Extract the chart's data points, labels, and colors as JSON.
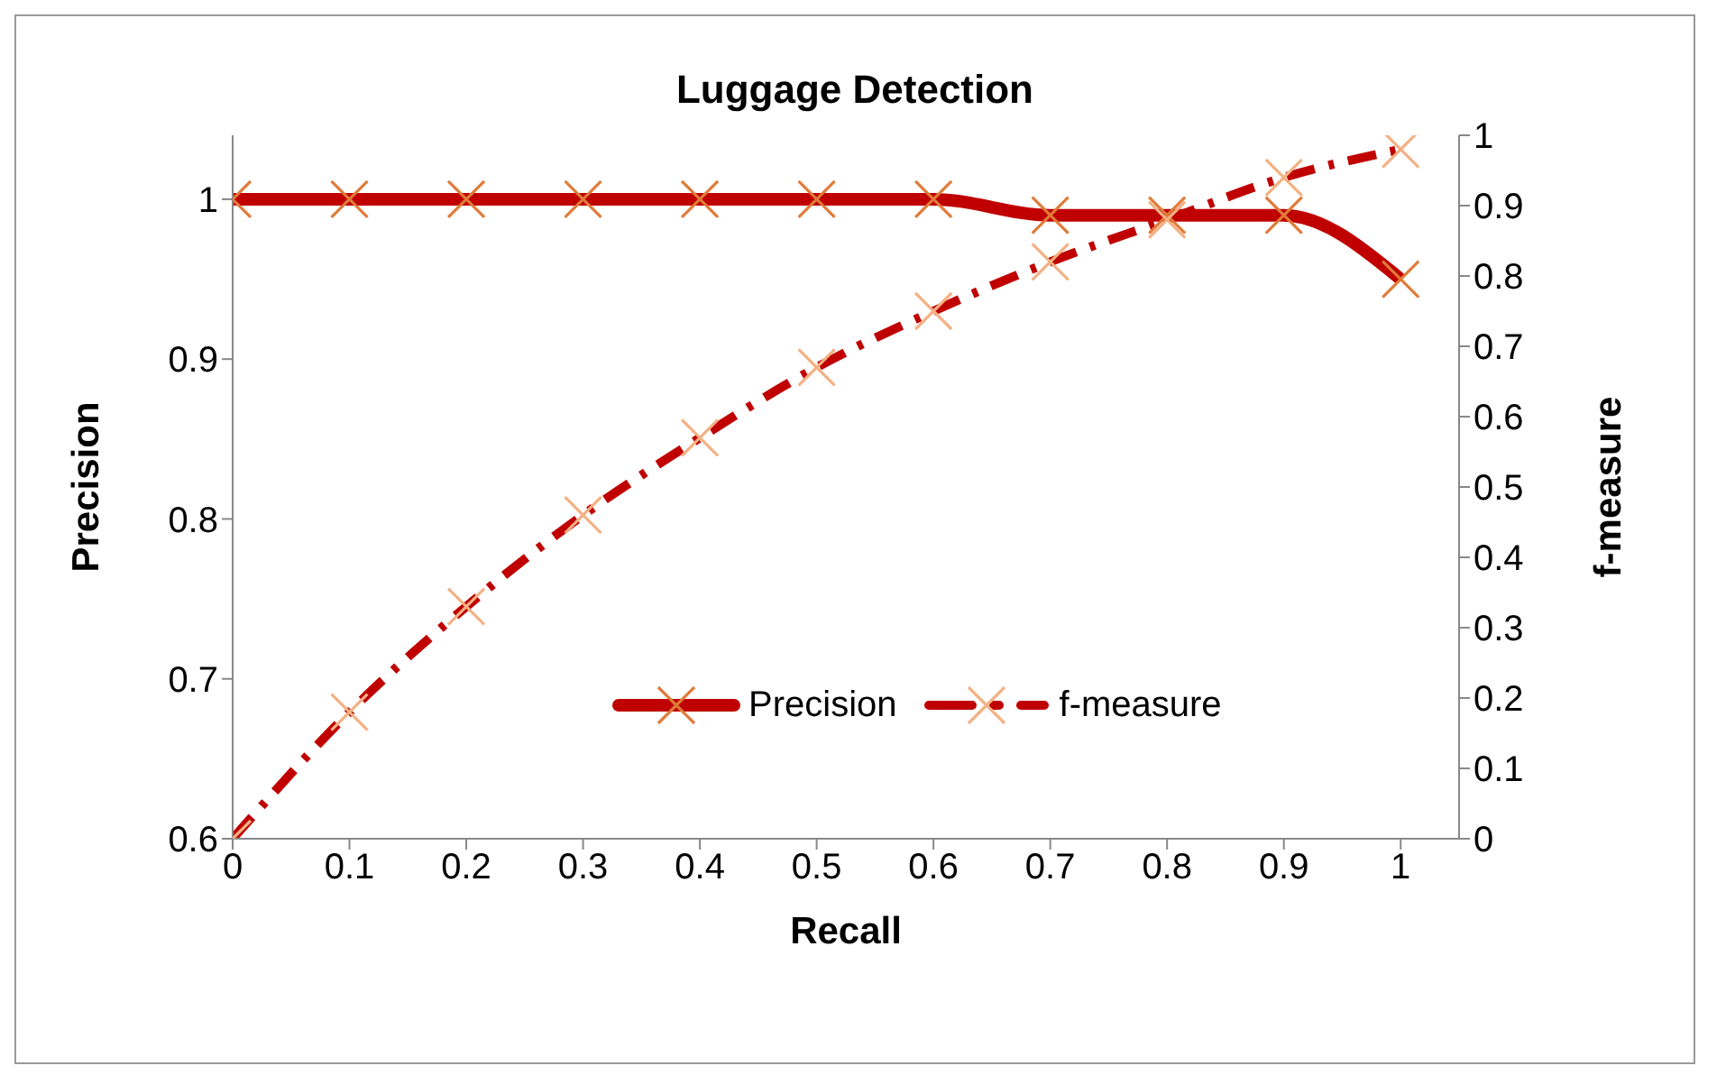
{
  "chart_data": {
    "type": "line",
    "title": "Luggage Detection",
    "xlabel": "Recall",
    "ylabel": "Precision",
    "y2label": "f-measure",
    "x": [
      0,
      0.1,
      0.2,
      0.3,
      0.4,
      0.5,
      0.6,
      0.7,
      0.8,
      0.9,
      1
    ],
    "series": [
      {
        "name": "Precision",
        "color": "#c00000",
        "values": [
          1,
          1,
          1,
          1,
          1,
          1,
          1,
          0.99,
          0.99,
          0.99,
          0.95
        ],
        "line_style": "solid"
      },
      {
        "name": "f-measure",
        "color": "#c00000",
        "axis": "y2",
        "values": [
          0,
          0.18,
          0.33,
          0.46,
          0.57,
          0.67,
          0.75,
          0.82,
          0.88,
          0.94,
          0.98
        ],
        "line_style": "dashed"
      }
    ],
    "xlim": [
      0,
      1.05
    ],
    "xticks": [
      0,
      0.1,
      0.2,
      0.3,
      0.4,
      0.5,
      0.6,
      0.7,
      0.8,
      0.9,
      1
    ],
    "ylim": [
      0.6,
      1.04
    ],
    "yticks": [
      0.6,
      0.7,
      0.8,
      0.9,
      1
    ],
    "y2lim": [
      0,
      1
    ],
    "y2ticks": [
      0,
      0.1,
      0.2,
      0.3,
      0.4,
      0.5,
      0.6,
      0.7,
      0.8,
      0.9,
      1
    ],
    "marker": "cross",
    "grid": false,
    "legend": "center"
  }
}
